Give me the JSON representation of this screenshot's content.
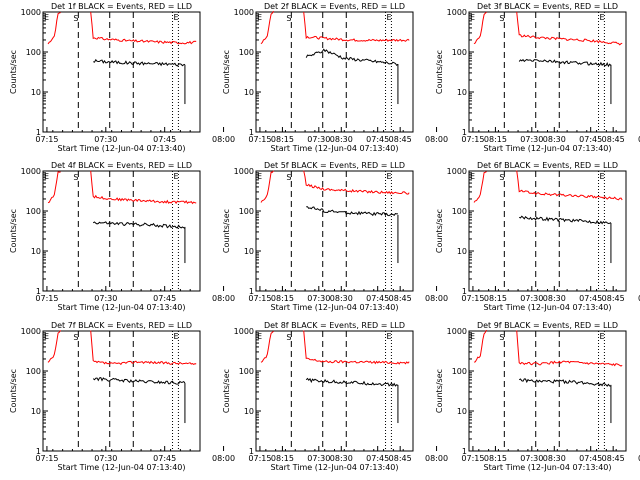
{
  "chart_data": {
    "type": "line",
    "panel_titles": [
      "Det 1f  BLACK = Events, RED = LLD",
      "Det 2f  BLACK = Events, RED = LLD",
      "Det 3f  BLACK = Events, RED = LLD",
      "Det 4f  BLACK = Events, RED = LLD",
      "Det 5f  BLACK = Events, RED = LLD",
      "Det 6f  BLACK = Events, RED = LLD",
      "Det 7f  BLACK = Events, RED = LLD",
      "Det 8f  BLACK = Events, RED = LLD",
      "Det 9f  BLACK = Events, RED = LLD"
    ],
    "xlabel": "Start Time (12-Jun-04 07:13:40)",
    "ylabel": "Counts/sec",
    "x_ticks": [
      "07:15",
      "07:30",
      "07:45",
      "08:00",
      "08:15",
      "08:30",
      "08:45"
    ],
    "y_ticks": [
      "1",
      "10",
      "100",
      "1000"
    ],
    "y_scale": "log",
    "ylim": [
      1,
      1000
    ],
    "xlim_minutes_after_0700": [
      14,
      54
    ],
    "markers": {
      "E_left": "E",
      "S": "S",
      "E_right": "E",
      "dashed_minutes": [
        23,
        31,
        37
      ],
      "dotted_minutes": [
        47,
        48.5
      ]
    },
    "colors": {
      "events": "#000000",
      "lld": "#ff0000"
    },
    "panels": [
      {
        "lld": [
          [
            40,
            230
          ],
          [
            50,
            210
          ],
          [
            70,
            190
          ],
          [
            90,
            180
          ],
          [
            110,
            170
          ],
          [
            122,
            175
          ]
        ],
        "events": [
          [
            40,
            60
          ],
          [
            60,
            55
          ],
          [
            80,
            52
          ],
          [
            100,
            50
          ],
          [
            113,
            48
          ]
        ]
      },
      {
        "lld": [
          [
            40,
            240
          ],
          [
            55,
            220
          ],
          [
            75,
            200
          ],
          [
            95,
            195
          ],
          [
            122,
            200
          ]
        ],
        "events": [
          [
            40,
            75
          ],
          [
            55,
            110
          ],
          [
            70,
            70
          ],
          [
            90,
            60
          ],
          [
            113,
            50
          ]
        ]
      },
      {
        "lld": [
          [
            40,
            260
          ],
          [
            55,
            230
          ],
          [
            75,
            210
          ],
          [
            95,
            195
          ],
          [
            122,
            160
          ]
        ],
        "events": [
          [
            40,
            60
          ],
          [
            55,
            62
          ],
          [
            75,
            55
          ],
          [
            95,
            52
          ],
          [
            113,
            48
          ]
        ]
      },
      {
        "lld": [
          [
            40,
            230
          ],
          [
            55,
            200
          ],
          [
            75,
            185
          ],
          [
            95,
            170
          ],
          [
            122,
            165
          ]
        ],
        "events": [
          [
            40,
            52
          ],
          [
            60,
            48
          ],
          [
            80,
            46
          ],
          [
            100,
            42
          ],
          [
            113,
            40
          ]
        ]
      },
      {
        "lld": [
          [
            40,
            450
          ],
          [
            55,
            350
          ],
          [
            75,
            320
          ],
          [
            95,
            300
          ],
          [
            122,
            280
          ]
        ],
        "events": [
          [
            40,
            130
          ],
          [
            55,
            100
          ],
          [
            75,
            90
          ],
          [
            95,
            85
          ],
          [
            113,
            80
          ]
        ]
      },
      {
        "lld": [
          [
            40,
            320
          ],
          [
            55,
            270
          ],
          [
            75,
            250
          ],
          [
            95,
            230
          ],
          [
            122,
            200
          ]
        ],
        "events": [
          [
            40,
            70
          ],
          [
            55,
            65
          ],
          [
            75,
            60
          ],
          [
            95,
            55
          ],
          [
            113,
            50
          ]
        ]
      },
      {
        "lld": [
          [
            40,
            170
          ],
          [
            55,
            150
          ],
          [
            75,
            170
          ],
          [
            95,
            160
          ],
          [
            122,
            150
          ]
        ],
        "events": [
          [
            40,
            65
          ],
          [
            55,
            60
          ],
          [
            75,
            55
          ],
          [
            95,
            52
          ],
          [
            113,
            50
          ]
        ]
      },
      {
        "lld": [
          [
            40,
            200
          ],
          [
            55,
            170
          ],
          [
            75,
            170
          ],
          [
            95,
            165
          ],
          [
            122,
            160
          ]
        ],
        "events": [
          [
            40,
            60
          ],
          [
            55,
            55
          ],
          [
            75,
            52
          ],
          [
            95,
            48
          ],
          [
            113,
            45
          ]
        ]
      },
      {
        "lld": [
          [
            40,
            160
          ],
          [
            55,
            150
          ],
          [
            75,
            170
          ],
          [
            95,
            155
          ],
          [
            122,
            140
          ]
        ],
        "events": [
          [
            40,
            60
          ],
          [
            55,
            55
          ],
          [
            75,
            55
          ],
          [
            95,
            50
          ],
          [
            113,
            45
          ]
        ]
      }
    ]
  }
}
